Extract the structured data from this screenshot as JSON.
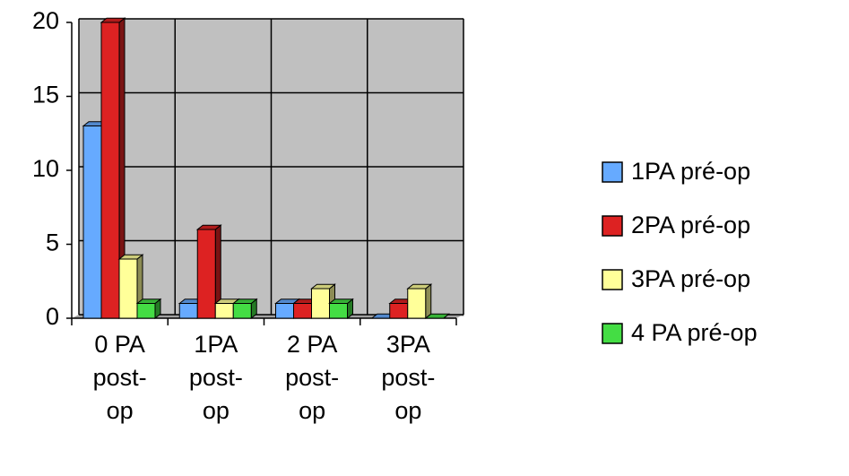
{
  "chart_data": {
    "type": "bar",
    "categories": [
      "0 PA post-op",
      "1PA post-op",
      "2 PA post-op",
      "3PA post-op"
    ],
    "series": [
      {
        "name": "1PA pré-op",
        "color": "#66aaff",
        "values": [
          13,
          1,
          1,
          0
        ]
      },
      {
        "name": "2PA pré-op",
        "color": "#dd2222",
        "values": [
          20,
          6,
          1,
          1
        ]
      },
      {
        "name": "3PA pré-op",
        "color": "#ffff99",
        "values": [
          4,
          1,
          2,
          2
        ]
      },
      {
        "name": "4 PA pré-op",
        "color": "#44dd44",
        "values": [
          1,
          1,
          1,
          0
        ]
      }
    ],
    "ylim": [
      0,
      20
    ],
    "yticks": [
      0,
      5,
      10,
      15,
      20
    ],
    "grid": true,
    "legend": "right"
  }
}
